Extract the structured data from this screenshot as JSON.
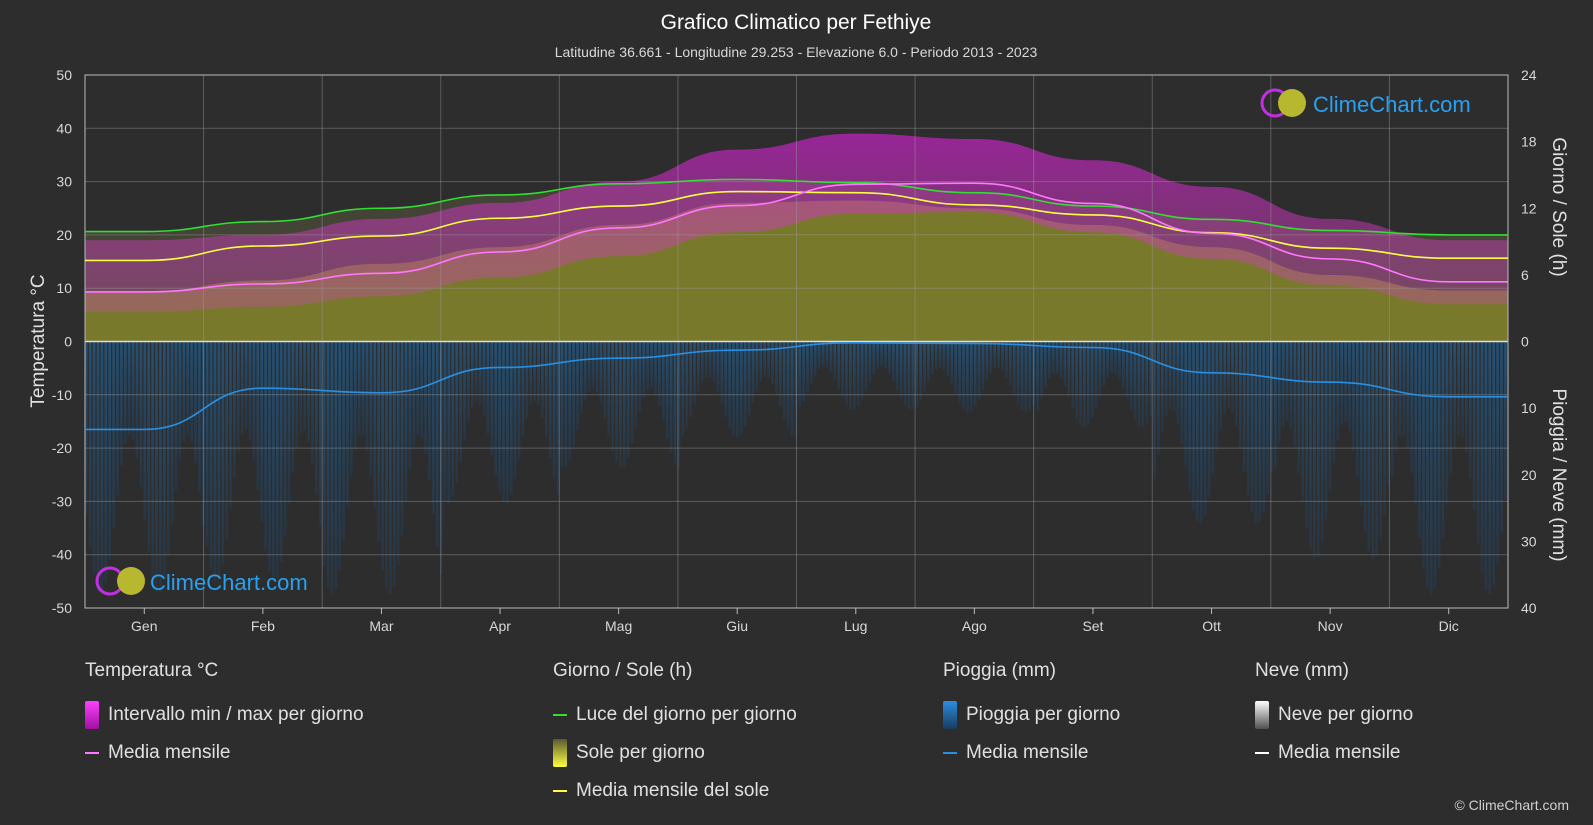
{
  "title": "Grafico Climatico per Fethiye",
  "subtitle": "Latitudine 36.661 - Longitudine 29.253 - Elevazione 6.0 - Periodo 2013 - 2023",
  "brand": "ClimeChart.com",
  "copyright": "© ClimeChart.com",
  "colors": {
    "background": "#2d2d2d",
    "temp_range": "#d020d0",
    "temp_mean": "#ff77ff",
    "daylight": "#33dd33",
    "sun": "#c8c832",
    "sun_mean": "#ffff44",
    "rain": "#2a8fe0",
    "snow": "#ffffff"
  },
  "legend": {
    "temperature": {
      "header": "Temperatura °C",
      "range": "Intervallo min / max per giorno",
      "mean": "Media mensile"
    },
    "sun": {
      "header": "Giorno / Sole (h)",
      "daylight": "Luce del giorno per giorno",
      "sunshine": "Sole per giorno",
      "mean": "Media mensile del sole"
    },
    "rain": {
      "header": "Pioggia (mm)",
      "daily": "Pioggia per giorno",
      "mean": "Media mensile"
    },
    "snow": {
      "header": "Neve (mm)",
      "daily": "Neve per giorno",
      "mean": "Media mensile"
    }
  },
  "chart_data": {
    "type": "area",
    "x_ticks": [
      "Gen",
      "Feb",
      "Mar",
      "Apr",
      "Mag",
      "Giu",
      "Lug",
      "Ago",
      "Set",
      "Ott",
      "Nov",
      "Dic"
    ],
    "y_left": {
      "label": "Temperatura °C",
      "range": [
        -50,
        50
      ],
      "ticks": [
        50,
        40,
        30,
        20,
        10,
        0,
        -10,
        -20,
        -30,
        -40,
        -50
      ]
    },
    "y_right_top": {
      "label": "Giorno / Sole (h)",
      "range": [
        0,
        24
      ],
      "ticks": [
        24,
        18,
        12,
        6,
        0
      ]
    },
    "y_right_bottom": {
      "label": "Pioggia / Neve (mm)",
      "range": [
        0,
        40
      ],
      "ticks": [
        0,
        10,
        20,
        30,
        40
      ]
    },
    "grid": true,
    "series": [
      {
        "name": "Media mensile",
        "unit": "°C",
        "values": [
          9.3,
          10.8,
          12.8,
          16.8,
          21.3,
          25.5,
          29.5,
          29.7,
          25.9,
          20.3,
          15.5,
          11.2
        ]
      },
      {
        "name": "Intervallo min / max per giorno",
        "unit": "°C",
        "min": [
          5.5,
          6.5,
          8.5,
          12,
          16,
          20.5,
          24,
          24.3,
          20.5,
          15.5,
          10.5,
          7
        ],
        "max": [
          19,
          20,
          23,
          26,
          30,
          36,
          39,
          38,
          34,
          29,
          23,
          19
        ]
      },
      {
        "name": "Luce del giorno per giorno",
        "unit": "h",
        "values": [
          9.9,
          10.8,
          12.0,
          13.2,
          14.2,
          14.6,
          14.3,
          13.4,
          12.2,
          11.0,
          10.0,
          9.6
        ]
      },
      {
        "name": "Sole per giorno",
        "unit": "h",
        "values": [
          4.5,
          5.5,
          7,
          8.5,
          10.5,
          12.5,
          12.7,
          12,
          10.5,
          8.5,
          6,
          4.6
        ]
      },
      {
        "name": "Media mensile del sole",
        "unit": "h",
        "values": [
          7.3,
          8.6,
          9.5,
          11.1,
          12.2,
          13.5,
          13.4,
          12.3,
          11.4,
          9.8,
          8.4,
          7.5
        ]
      },
      {
        "name": "Pioggia Media mensile",
        "unit": "mm",
        "values": [
          13.2,
          7.0,
          7.7,
          3.9,
          2.5,
          1.3,
          0.2,
          0.3,
          0.9,
          4.7,
          6.1,
          8.3
        ]
      }
    ]
  }
}
